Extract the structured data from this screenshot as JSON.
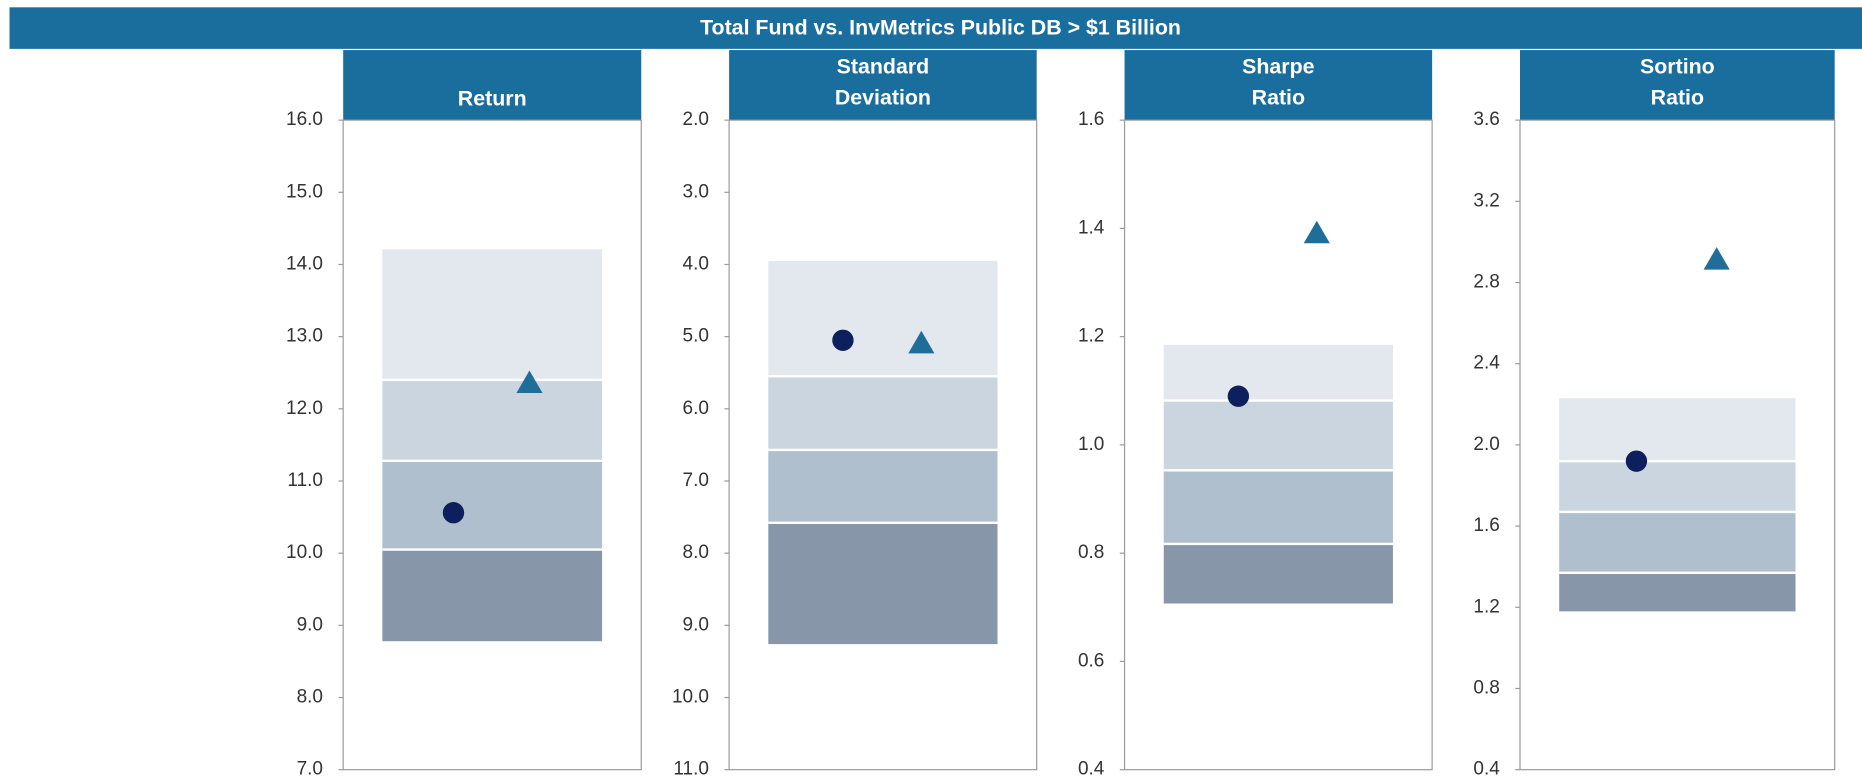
{
  "chart_data": [
    {
      "type": "floating-bar",
      "title": "Total Fund vs. InvMetrics Public DB > $1 Billion",
      "header": [
        "Return"
      ],
      "ylim": [
        7,
        16
      ],
      "y_inverted": false,
      "yticks": [
        {
          "value": 7,
          "label": "7.0"
        },
        {
          "value": 8,
          "label": "8.0"
        },
        {
          "value": 9,
          "label": "9.0"
        },
        {
          "value": 10,
          "label": "10.0"
        },
        {
          "value": 11,
          "label": "11.0"
        },
        {
          "value": 12,
          "label": "12.0"
        },
        {
          "value": 13,
          "label": "13.0"
        },
        {
          "value": 14,
          "label": "14.0"
        },
        {
          "value": 15,
          "label": "15.0"
        },
        {
          "value": 16,
          "label": "16.0"
        }
      ],
      "band_edges": [
        14.21,
        12.4,
        11.28,
        10.05,
        8.78
      ],
      "band_colors": [
        "#e3e8ef",
        "#cbd5df",
        "#b0bfcd",
        "#8796a8"
      ],
      "series": [
        {
          "marker": "circle",
          "color": "#0d1f5c",
          "values": [
            10.56
          ]
        },
        {
          "marker": "triangle",
          "color": "#1f6e9a",
          "values": [
            12.35
          ]
        }
      ]
    },
    {
      "type": "floating-bar",
      "header": [
        "Standard",
        "Deviation"
      ],
      "ylim": [
        2,
        11
      ],
      "y_inverted": true,
      "yticks": [
        {
          "value": 2,
          "label": "2.0"
        },
        {
          "value": 3,
          "label": "3.0"
        },
        {
          "value": 4,
          "label": "4.0"
        },
        {
          "value": 5,
          "label": "5.0"
        },
        {
          "value": 6,
          "label": "6.0"
        },
        {
          "value": 7,
          "label": "7.0"
        },
        {
          "value": 8,
          "label": "8.0"
        },
        {
          "value": 9,
          "label": "9.0"
        },
        {
          "value": 10,
          "label": "10.0"
        },
        {
          "value": 11,
          "label": "11.0"
        }
      ],
      "band_edges": [
        3.95,
        5.55,
        6.57,
        7.58,
        9.26
      ],
      "band_colors": [
        "#e3e8ef",
        "#cbd5df",
        "#b0bfcd",
        "#8796a8"
      ],
      "series": [
        {
          "marker": "circle",
          "color": "#0d1f5c",
          "values": [
            5.05
          ]
        },
        {
          "marker": "triangle",
          "color": "#1f6e9a",
          "values": [
            5.1
          ]
        }
      ]
    },
    {
      "type": "floating-bar",
      "header": [
        "Sharpe",
        "Ratio"
      ],
      "ylim": [
        0.4,
        1.6
      ],
      "y_inverted": false,
      "yticks": [
        0.4,
        0.6,
        0.8,
        {
          "value": 1,
          "label": "1.0"
        },
        1.2,
        1.4,
        1.6
      ],
      "band_edges": [
        1.185,
        1.082,
        0.953,
        0.817,
        0.707
      ],
      "band_colors": [
        "#e3e8ef",
        "#cbd5df",
        "#b0bfcd",
        "#8796a8"
      ],
      "series": [
        {
          "marker": "circle",
          "color": "#0d1f5c",
          "values": [
            1.09
          ]
        },
        {
          "marker": "triangle",
          "color": "#1f6e9a",
          "values": [
            1.39
          ]
        }
      ]
    },
    {
      "type": "floating-bar",
      "header": [
        "Sortino",
        "Ratio"
      ],
      "ylim": [
        0.4,
        3.6
      ],
      "y_inverted": false,
      "yticks": [
        0.4,
        0.8,
        1.2,
        1.6,
        {
          "value": 2,
          "label": "2.0"
        },
        2.4,
        2.8,
        3.2,
        3.6
      ],
      "band_edges": [
        2.23,
        1.92,
        1.67,
        1.37,
        1.18
      ],
      "band_colors": [
        "#e3e8ef",
        "#cbd5df",
        "#b0bfcd",
        "#8796a8"
      ],
      "series": [
        {
          "marker": "circle",
          "color": "#0d1f5c",
          "values": [
            1.92
          ]
        },
        {
          "marker": "triangle",
          "color": "#1f6e9a",
          "values": [
            2.91
          ]
        }
      ]
    }
  ]
}
